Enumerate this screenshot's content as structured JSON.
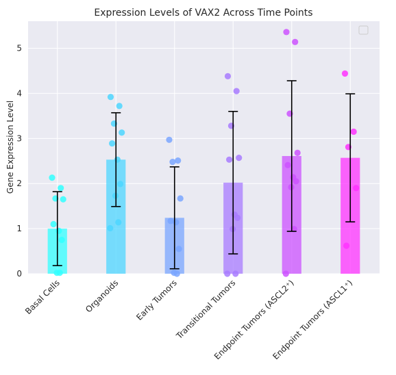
{
  "chart_data": {
    "type": "bar",
    "title": "Expression Levels of VAX2 Across Time Points",
    "xlabel": "",
    "ylabel": "Gene Expression Level",
    "ylim": [
      0,
      5.6
    ],
    "yticks": [
      "0",
      "1",
      "2",
      "3",
      "4",
      "5"
    ],
    "grid": true,
    "legend": "top-right (empty)",
    "categories": [
      "Basal Cells",
      "Organoids",
      "Early Tumors",
      "Transitional Tumors",
      "Endpoint Tumors (ASCL2⁺)",
      "Endpoint Tumors (ASCL1⁺)"
    ],
    "values": [
      1.0,
      2.53,
      1.24,
      2.02,
      2.61,
      2.57
    ],
    "error": [
      0.82,
      1.04,
      1.13,
      1.58,
      1.67,
      1.42
    ],
    "colors": [
      "#33ffff",
      "#4dd6ff",
      "#7aa6ff",
      "#a87bff",
      "#cc52ff",
      "#ff33ff"
    ],
    "points": [
      [
        2.13,
        1.9,
        1.67,
        1.65,
        1.1,
        0.95,
        0.75,
        0.02,
        0.02
      ],
      [
        3.92,
        3.72,
        3.33,
        3.13,
        2.89,
        2.53,
        1.99,
        1.73,
        1.14,
        1.01
      ],
      [
        2.97,
        2.51,
        2.48,
        1.67,
        1.17,
        1.14,
        0.55,
        0.02,
        0.0
      ],
      [
        4.38,
        4.05,
        3.28,
        2.57,
        2.53,
        1.31,
        1.24,
        0.99,
        0.0,
        0.0
      ],
      [
        5.36,
        5.14,
        3.55,
        2.68,
        2.41,
        2.14,
        2.05,
        1.92,
        0.99,
        0.0
      ],
      [
        4.44,
        3.15,
        2.81,
        1.9,
        0.62
      ]
    ]
  }
}
